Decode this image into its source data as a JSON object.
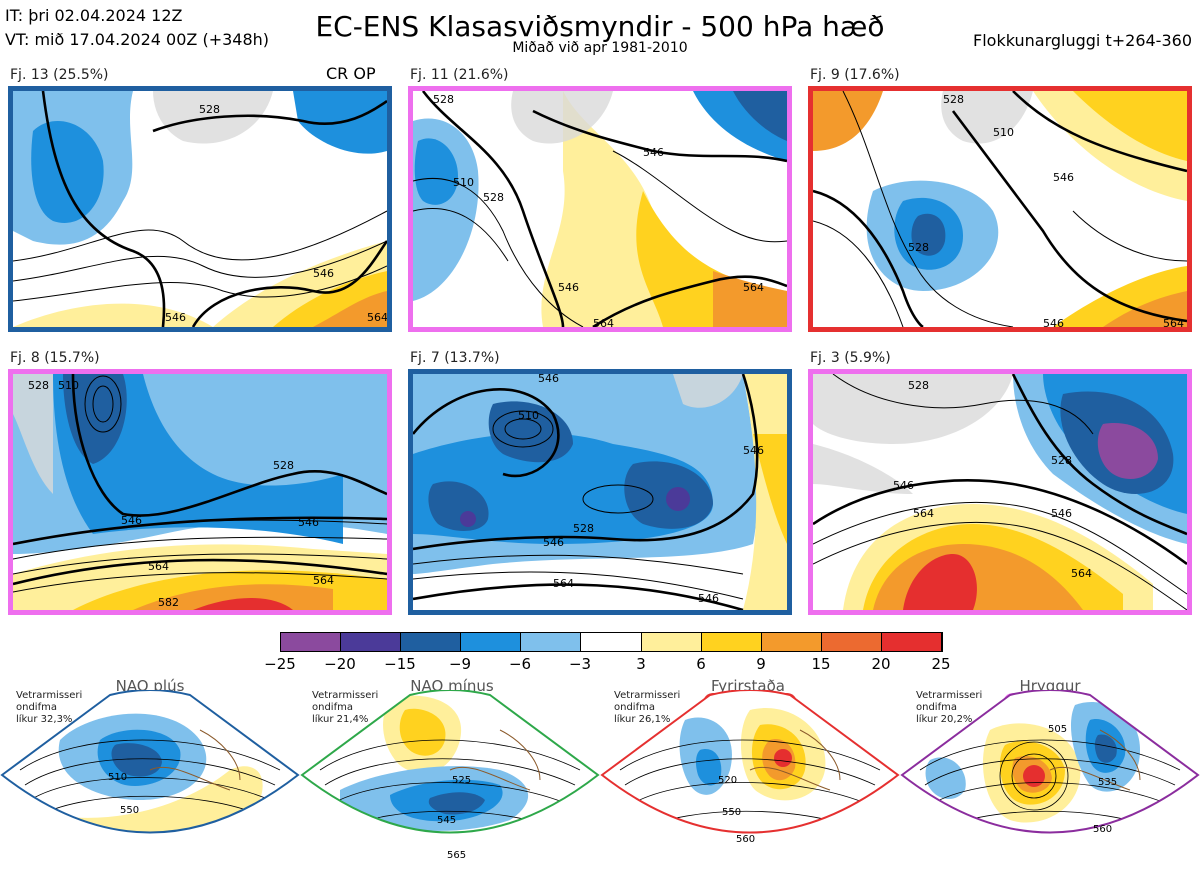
{
  "header": {
    "it": "IT: þri 02.04.2024 12Z",
    "vt": "VT: mið 17.04.2024 00Z  (+348h)",
    "title": "EC-ENS Klasasviðsmyndir - 500 hPa hæð",
    "subtitle": "Miðað við apr 1981-2010",
    "window": "Flokkunargluggi t+264-360"
  },
  "panels": [
    {
      "label": "Fj. 13 (25.5%)",
      "tag": "CR OP",
      "border": "#1f5fa0",
      "contours": [
        "528",
        "546",
        "546",
        "564"
      ]
    },
    {
      "label": "Fj. 11 (21.6%)",
      "tag": "",
      "border": "#ee6fee",
      "contours": [
        "528",
        "510",
        "528",
        "546",
        "546",
        "564",
        "564"
      ]
    },
    {
      "label": "Fj. 9 (17.6%)",
      "tag": "",
      "border": "#e53030",
      "contours": [
        "528",
        "510",
        "546",
        "528",
        "546",
        "564"
      ]
    },
    {
      "label": "Fj. 8 (15.7%)",
      "tag": "",
      "border": "#ee6fee",
      "contours": [
        "528",
        "510",
        "528",
        "546",
        "546",
        "564",
        "564",
        "582"
      ]
    },
    {
      "label": "Fj. 7 (13.7%)",
      "tag": "",
      "border": "#1f5fa0",
      "contours": [
        "510",
        "528",
        "546",
        "546",
        "564",
        "546",
        "546"
      ]
    },
    {
      "label": "Fj. 3 (5.9%)",
      "tag": "",
      "border": "#ee6fee",
      "contours": [
        "528",
        "528",
        "546",
        "564",
        "546",
        "564"
      ]
    }
  ],
  "colorbar": {
    "ticks": [
      "−25",
      "−20",
      "−15",
      "−9",
      "−6",
      "−3",
      "3",
      "6",
      "9",
      "15",
      "20",
      "25"
    ],
    "colors": [
      "#8b4a9e",
      "#4b3a99",
      "#1f5fa0",
      "#1e90dd",
      "#7fc0ec",
      "#ffffff",
      "#ffef9b",
      "#ffd21f",
      "#f39a2c",
      "#ec6a30",
      "#e52f2f",
      "#b31519"
    ]
  },
  "regimes": [
    {
      "name": "NAO plús",
      "note": [
        "Vetrarmisseri",
        "ondifma",
        "líkur 32,3%"
      ],
      "color": "#1f5fa0",
      "contours": [
        "510",
        "550"
      ]
    },
    {
      "name": "NAO mínus",
      "note": [
        "Vetrarmisseri",
        "ondifma",
        "líkur 21,4%"
      ],
      "color": "#2ea84a",
      "contours": [
        "525",
        "545",
        "565"
      ]
    },
    {
      "name": "Fyrirstaða",
      "note": [
        "Vetrarmisseri",
        "ondifma",
        "líkur 26,1%"
      ],
      "color": "#e53030",
      "contours": [
        "520",
        "550",
        "560"
      ]
    },
    {
      "name": "Hryggur",
      "note": [
        "Vetrarmisseri",
        "ondifma",
        "líkur 20,2%"
      ],
      "color": "#ee6fee",
      "contours": [
        "505",
        "535",
        "560"
      ]
    }
  ]
}
